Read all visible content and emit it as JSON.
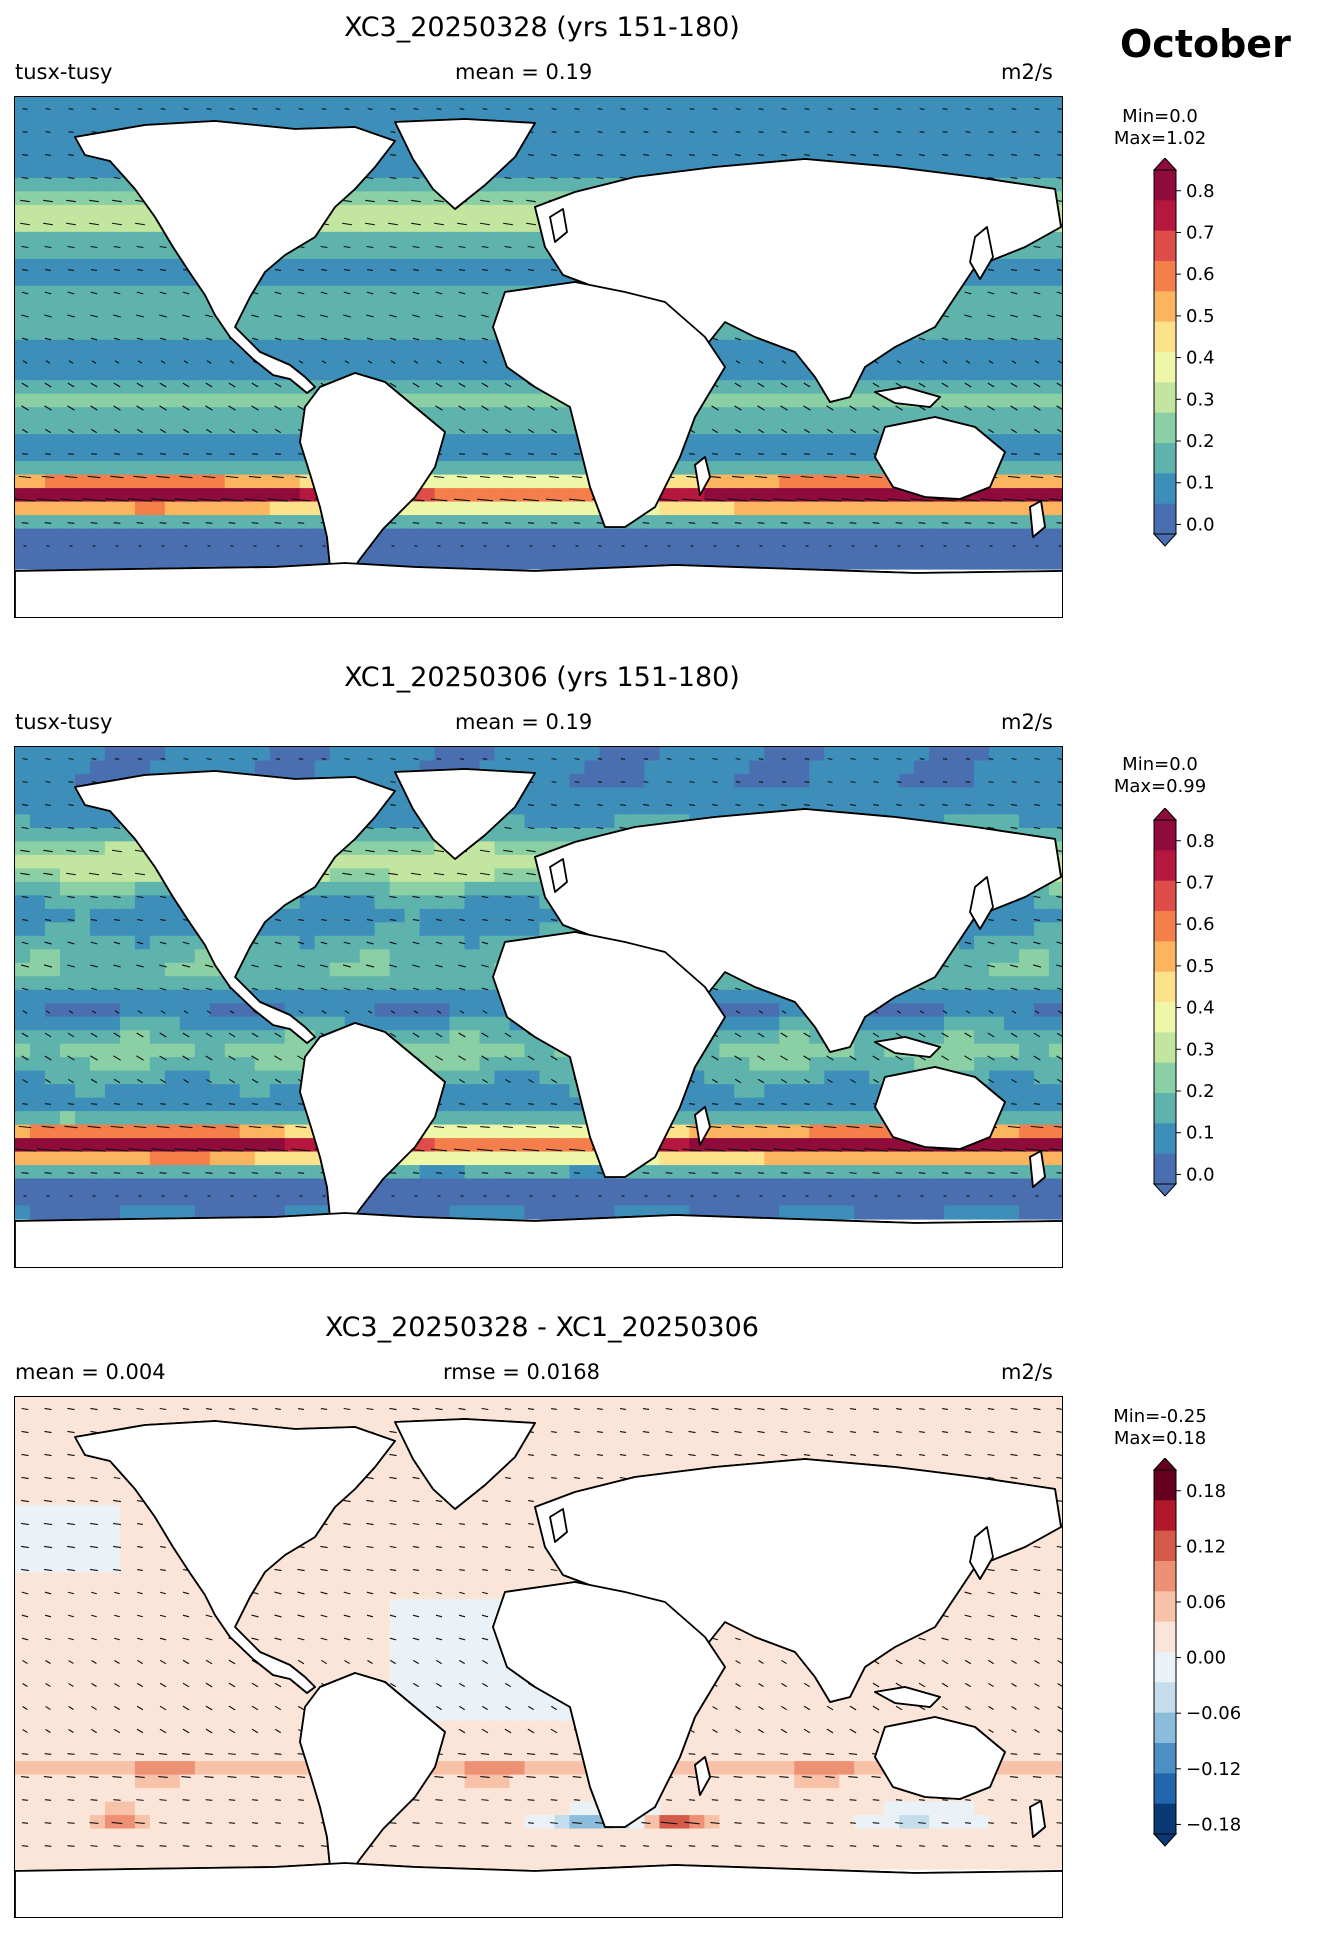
{
  "month": "October",
  "panels": [
    {
      "title": "XC3_20250328 (yrs 151-180)",
      "left": "tusx-tusy",
      "center": "mean = 0.19",
      "right": "m2/s",
      "min_label": "Min=0.0",
      "max_label": "Max=1.02",
      "colormap": "spectral",
      "ticks": [
        "0.0",
        "0.1",
        "0.2",
        "0.3",
        "0.4",
        "0.5",
        "0.6",
        "0.7",
        "0.8"
      ]
    },
    {
      "title": "XC1_20250306 (yrs 151-180)",
      "left": "tusx-tusy",
      "center": "mean = 0.19",
      "right": "m2/s",
      "min_label": "Min=0.0",
      "max_label": "Max=0.99",
      "colormap": "spectral",
      "ticks": [
        "0.0",
        "0.1",
        "0.2",
        "0.3",
        "0.4",
        "0.5",
        "0.6",
        "0.7",
        "0.8"
      ]
    },
    {
      "title": "XC3_20250328 - XC1_20250306",
      "left": "mean = 0.004",
      "center": "rmse = 0.0168",
      "right": "m2/s",
      "min_label": "Min=-0.25",
      "max_label": "Max=0.18",
      "colormap": "diverging",
      "ticks": [
        "−0.18",
        "−0.12",
        "−0.06",
        "0.00",
        "0.06",
        "0.12",
        "0.18"
      ]
    }
  ],
  "colors": {
    "spectral": [
      "#4a6fb0",
      "#3d8fba",
      "#5fb3ad",
      "#8ad0a4",
      "#c2e6a0",
      "#eef6a8",
      "#fde28b",
      "#fcb45f",
      "#f57f4b",
      "#df4d4b",
      "#b5173e",
      "#8e0b3b"
    ],
    "diverging": [
      "#0a3a75",
      "#2166ac",
      "#4b8fc4",
      "#8cbcdc",
      "#c4dcec",
      "#eaf2f8",
      "#fbe4d8",
      "#f7c2a8",
      "#ee9073",
      "#d65a4a",
      "#b2182b",
      "#67001f"
    ]
  }
}
